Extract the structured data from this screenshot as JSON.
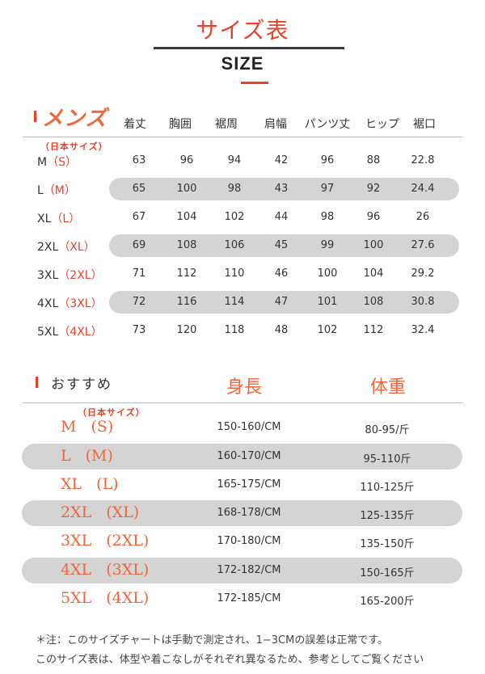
{
  "header": {
    "title": "サイズ表",
    "subtitle": "SIZE"
  },
  "mens": {
    "heading": "メンズ",
    "jp_size_note": "（日本サイズ）",
    "columns": [
      "着丈",
      "胸囲",
      "裾周",
      "肩幅",
      "パンツ丈",
      "ヒップ",
      "裾口"
    ],
    "rows": [
      {
        "size": "M",
        "jp": "（S）",
        "values": [
          "63",
          "96",
          "94",
          "42",
          "96",
          "88",
          "22.8"
        ]
      },
      {
        "size": "L",
        "jp": "（M）",
        "values": [
          "65",
          "100",
          "98",
          "43",
          "97",
          "92",
          "24.4"
        ]
      },
      {
        "size": "XL",
        "jp": "（L）",
        "values": [
          "67",
          "104",
          "102",
          "44",
          "98",
          "96",
          "26"
        ]
      },
      {
        "size": "2XL",
        "jp": "（XL）",
        "values": [
          "69",
          "108",
          "106",
          "45",
          "99",
          "100",
          "27.6"
        ]
      },
      {
        "size": "3XL",
        "jp": "（2XL）",
        "values": [
          "71",
          "112",
          "110",
          "46",
          "100",
          "104",
          "29.2"
        ]
      },
      {
        "size": "4XL",
        "jp": "（3XL）",
        "values": [
          "72",
          "116",
          "114",
          "47",
          "101",
          "108",
          "30.8"
        ]
      },
      {
        "size": "5XL",
        "jp": "（4XL）",
        "values": [
          "73",
          "120",
          "118",
          "48",
          "102",
          "112",
          "32.4"
        ]
      }
    ]
  },
  "recommend": {
    "heading": "おすすめ",
    "col_height": "身長",
    "col_weight": "体重",
    "jp_size_note": "（日本サイズ）",
    "rows": [
      {
        "size": "M",
        "jp": "(S)",
        "height": "150-160/CM",
        "weight": "80-95/斤"
      },
      {
        "size": "L",
        "jp": "(M)",
        "height": "160-170/CM",
        "weight": "95-110斤"
      },
      {
        "size": "XL",
        "jp": "(L)",
        "height": "165-175/CM",
        "weight": "110-125斤"
      },
      {
        "size": "2XL",
        "jp": "(XL)",
        "height": "168-178/CM",
        "weight": "125-135斤"
      },
      {
        "size": "3XL",
        "jp": "(2XL)",
        "height": "170-180/CM",
        "weight": "135-150斤"
      },
      {
        "size": "4XL",
        "jp": "(3XL)",
        "height": "172-182/CM",
        "weight": "150-165斤"
      },
      {
        "size": "5XL",
        "jp": "(4XL)",
        "height": "172-185/CM",
        "weight": "165-200斤"
      }
    ]
  },
  "notes": [
    "＊注：このサイズチャートは手動で測定され、1−3CMの誤差は正常です。",
    "このサイズ表は、体型や着こなしがそれぞれ異なるため、参考としてご覧ください"
  ],
  "colors": {
    "accent": "#e8432a",
    "accent_light": "#f0663a",
    "band": "#d4d4d4",
    "text": "#333333"
  }
}
